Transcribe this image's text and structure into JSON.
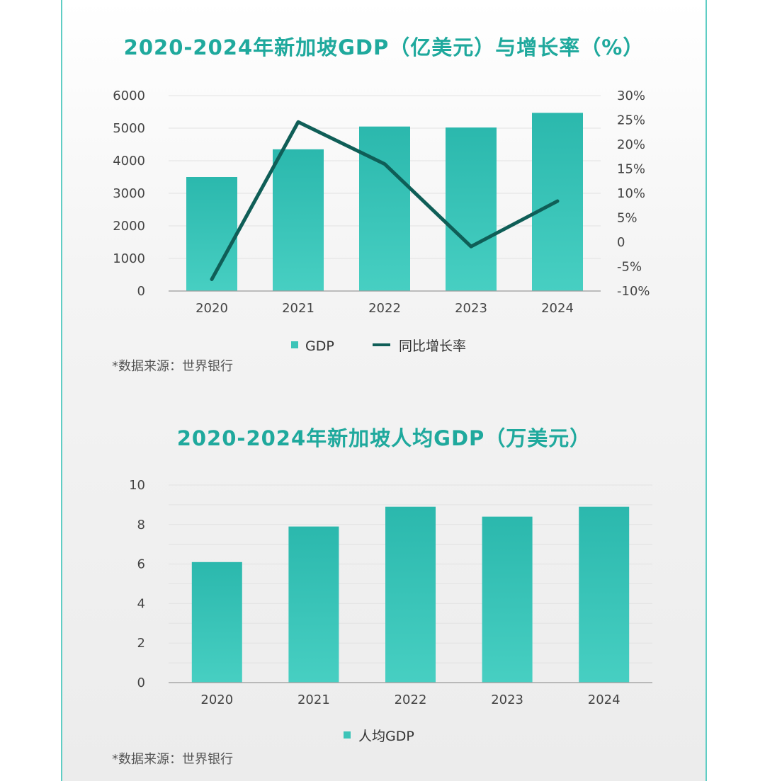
{
  "chart_data": [
    {
      "type": "bar",
      "title": "2020-2024年新加坡GDP（亿美元）与增长率（%）",
      "categories": [
        "2020",
        "2021",
        "2022",
        "2023",
        "2024"
      ],
      "series": [
        {
          "name": "GDP",
          "type": "bar",
          "axis": "left",
          "values": [
            3500,
            4350,
            5050,
            5020,
            5470
          ],
          "color": "#3cc4b8"
        },
        {
          "name": "同比增长率",
          "type": "line",
          "axis": "right",
          "values": [
            -7.6,
            24.6,
            16.0,
            -0.9,
            8.4
          ],
          "color": "#0f5e57"
        }
      ],
      "y_left": {
        "min": 0,
        "max": 6000,
        "ticks": [
          "0",
          "1000",
          "2000",
          "3000",
          "4000",
          "5000",
          "6000"
        ]
      },
      "y_right": {
        "min": -10,
        "max": 30,
        "ticks": [
          "-10%",
          "-5%",
          "0",
          "5%",
          "10%",
          "15%",
          "20%",
          "25%",
          "30%"
        ]
      },
      "grid": true,
      "legend": "bottom",
      "source": "*数据来源：世界银行"
    },
    {
      "type": "bar",
      "title": "2020-2024年新加坡人均GDP（万美元）",
      "categories": [
        "2020",
        "2021",
        "2022",
        "2023",
        "2024"
      ],
      "series": [
        {
          "name": "人均GDP",
          "values": [
            6.1,
            7.9,
            8.9,
            8.4,
            8.9
          ],
          "color": "#3cc4b8"
        }
      ],
      "ylim": [
        0,
        10
      ],
      "y_ticks": [
        "0",
        "2",
        "4",
        "6",
        "8",
        "10"
      ],
      "grid": true,
      "legend": "bottom",
      "source": "*数据来源：世界银行"
    }
  ]
}
